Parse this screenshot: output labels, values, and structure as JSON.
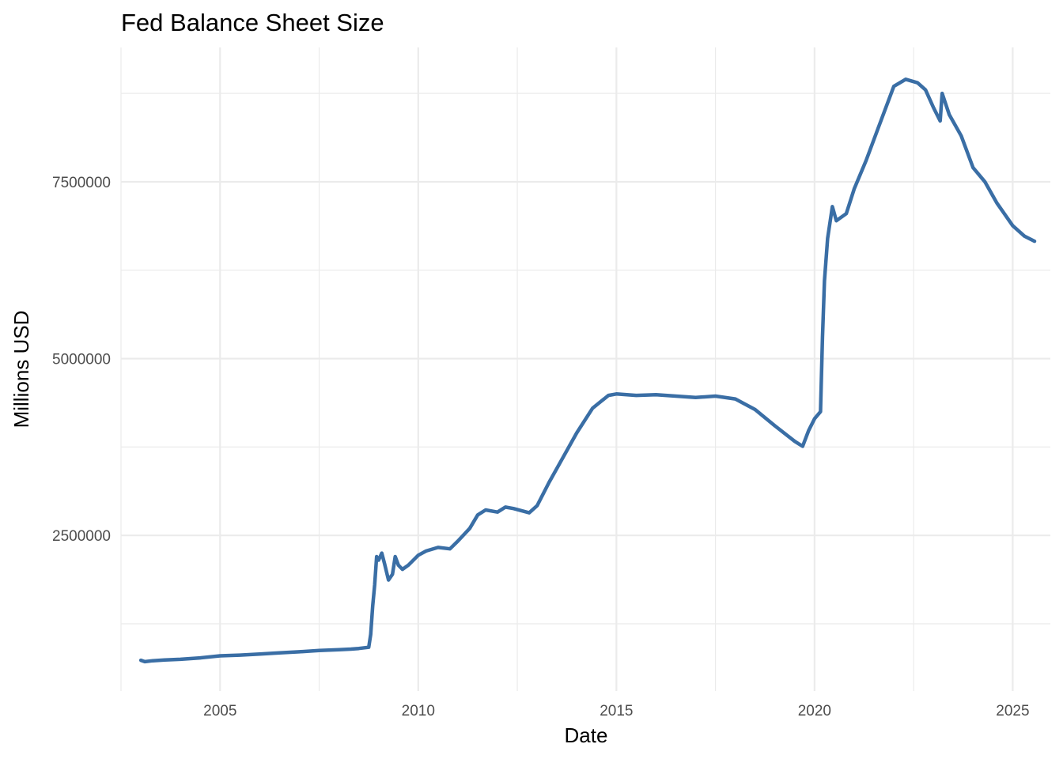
{
  "chart_data": {
    "type": "line",
    "title": "Fed Balance Sheet Size",
    "xlabel": "Date",
    "ylabel": "Millions USD",
    "xlim": [
      2002.5,
      2025.95
    ],
    "ylim": [
      300000,
      9400000
    ],
    "x_ticks": [
      2005,
      2010,
      2015,
      2020,
      2025
    ],
    "x_tick_labels": [
      "2005",
      "2010",
      "2015",
      "2020",
      "2025"
    ],
    "y_ticks": [
      2500000,
      5000000,
      7500000
    ],
    "y_tick_labels": [
      "2500000",
      "5000000",
      "7500000"
    ],
    "grid": true,
    "legend": "none",
    "line_color": "#3a6ea5",
    "series": [
      {
        "values": [
          [
            2003.0,
            735000
          ],
          [
            2003.1,
            715000
          ],
          [
            2003.3,
            728000
          ],
          [
            2003.6,
            738000
          ],
          [
            2004.0,
            748000
          ],
          [
            2004.5,
            768000
          ],
          [
            2005.0,
            798000
          ],
          [
            2005.5,
            808000
          ],
          [
            2006.0,
            823000
          ],
          [
            2006.5,
            840000
          ],
          [
            2007.0,
            855000
          ],
          [
            2007.5,
            872000
          ],
          [
            2008.0,
            884000
          ],
          [
            2008.3,
            892000
          ],
          [
            2008.5,
            902000
          ],
          [
            2008.75,
            918000
          ],
          [
            2008.8,
            1100000
          ],
          [
            2008.85,
            1500000
          ],
          [
            2008.9,
            1800000
          ],
          [
            2008.95,
            2200000
          ],
          [
            2009.0,
            2150000
          ],
          [
            2009.08,
            2250000
          ],
          [
            2009.15,
            2100000
          ],
          [
            2009.25,
            1870000
          ],
          [
            2009.35,
            1950000
          ],
          [
            2009.42,
            2200000
          ],
          [
            2009.5,
            2080000
          ],
          [
            2009.6,
            2020000
          ],
          [
            2009.75,
            2080000
          ],
          [
            2010.0,
            2220000
          ],
          [
            2010.2,
            2280000
          ],
          [
            2010.5,
            2330000
          ],
          [
            2010.8,
            2310000
          ],
          [
            2011.0,
            2420000
          ],
          [
            2011.3,
            2600000
          ],
          [
            2011.5,
            2790000
          ],
          [
            2011.7,
            2860000
          ],
          [
            2012.0,
            2830000
          ],
          [
            2012.2,
            2900000
          ],
          [
            2012.4,
            2880000
          ],
          [
            2012.8,
            2820000
          ],
          [
            2013.0,
            2920000
          ],
          [
            2013.3,
            3250000
          ],
          [
            2013.6,
            3550000
          ],
          [
            2014.0,
            3950000
          ],
          [
            2014.4,
            4300000
          ],
          [
            2014.8,
            4480000
          ],
          [
            2015.0,
            4500000
          ],
          [
            2015.5,
            4480000
          ],
          [
            2016.0,
            4490000
          ],
          [
            2016.5,
            4470000
          ],
          [
            2017.0,
            4450000
          ],
          [
            2017.5,
            4470000
          ],
          [
            2018.0,
            4430000
          ],
          [
            2018.5,
            4280000
          ],
          [
            2019.0,
            4050000
          ],
          [
            2019.5,
            3830000
          ],
          [
            2019.7,
            3760000
          ],
          [
            2019.85,
            3980000
          ],
          [
            2020.0,
            4150000
          ],
          [
            2020.15,
            4250000
          ],
          [
            2020.2,
            5300000
          ],
          [
            2020.25,
            6100000
          ],
          [
            2020.33,
            6700000
          ],
          [
            2020.45,
            7150000
          ],
          [
            2020.55,
            6950000
          ],
          [
            2020.8,
            7050000
          ],
          [
            2021.0,
            7400000
          ],
          [
            2021.3,
            7800000
          ],
          [
            2021.6,
            8250000
          ],
          [
            2022.0,
            8850000
          ],
          [
            2022.3,
            8950000
          ],
          [
            2022.6,
            8900000
          ],
          [
            2022.8,
            8800000
          ],
          [
            2023.0,
            8550000
          ],
          [
            2023.17,
            8360000
          ],
          [
            2023.22,
            8750000
          ],
          [
            2023.4,
            8450000
          ],
          [
            2023.7,
            8150000
          ],
          [
            2024.0,
            7700000
          ],
          [
            2024.3,
            7500000
          ],
          [
            2024.6,
            7200000
          ],
          [
            2025.0,
            6880000
          ],
          [
            2025.3,
            6730000
          ],
          [
            2025.55,
            6660000
          ]
        ]
      }
    ]
  }
}
